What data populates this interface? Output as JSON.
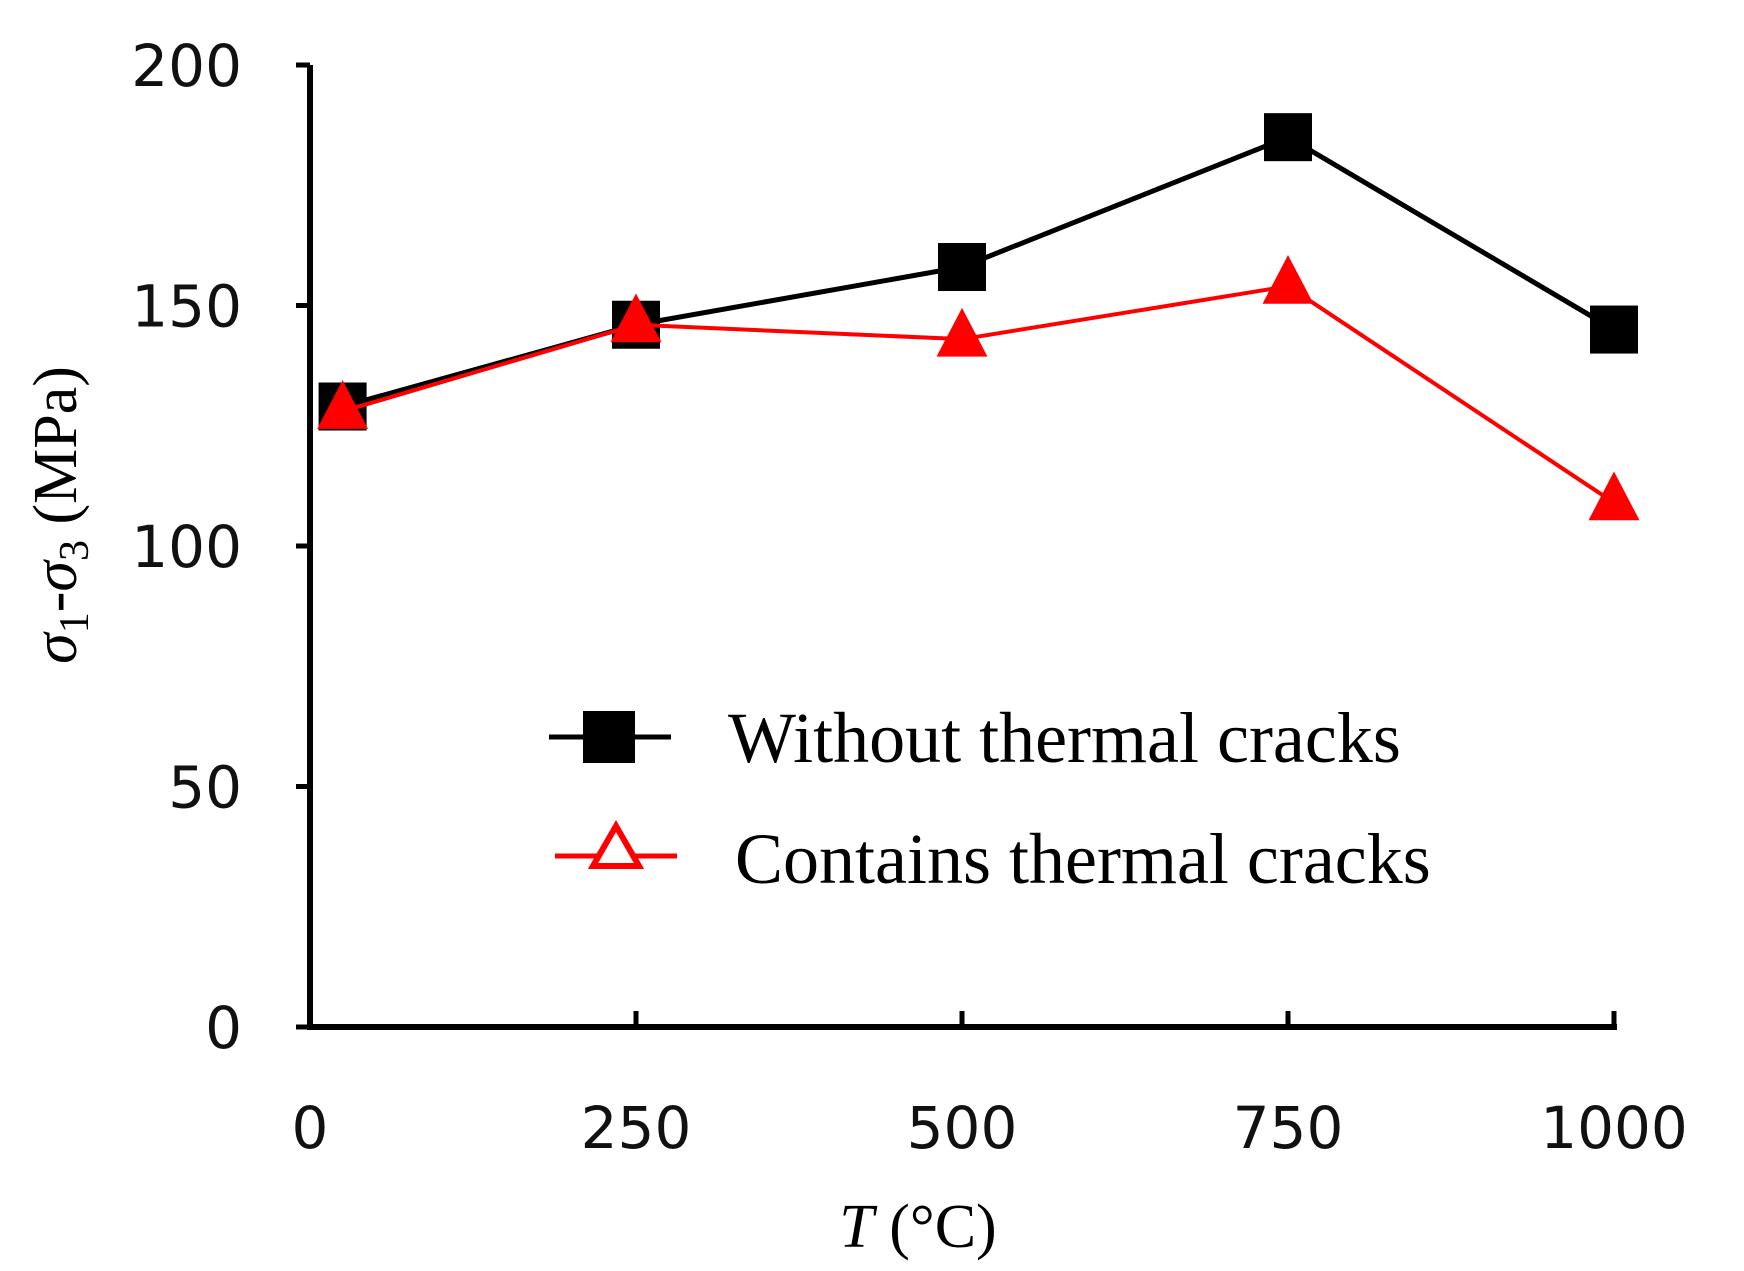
{
  "chart_data": {
    "type": "line",
    "x": [
      25,
      250,
      500,
      750,
      1000
    ],
    "xlim": [
      0,
      1000
    ],
    "ylim": [
      0,
      200
    ],
    "x_ticks": [
      "0",
      "250",
      "500",
      "750",
      "1000"
    ],
    "y_ticks": [
      "0",
      "50",
      "100",
      "150",
      "200"
    ],
    "xlabel": {
      "var": "T",
      "unit": " (°C)"
    },
    "ylabel": {
      "s1": "σ",
      "sub1": "1",
      "dash": "-",
      "s3": "σ",
      "sub3": "3",
      "unit": " (MPa)"
    },
    "grid": false,
    "legend_position": "center-right",
    "series": [
      {
        "name": "Without thermal cracks",
        "values": [
          129,
          146,
          158,
          185,
          145
        ],
        "color": "#000000",
        "marker": "square-filled"
      },
      {
        "name": "Contains thermal cracks",
        "values": [
          128,
          146,
          143,
          154,
          109
        ],
        "color": "#ff0000",
        "marker": "triangle"
      }
    ]
  }
}
